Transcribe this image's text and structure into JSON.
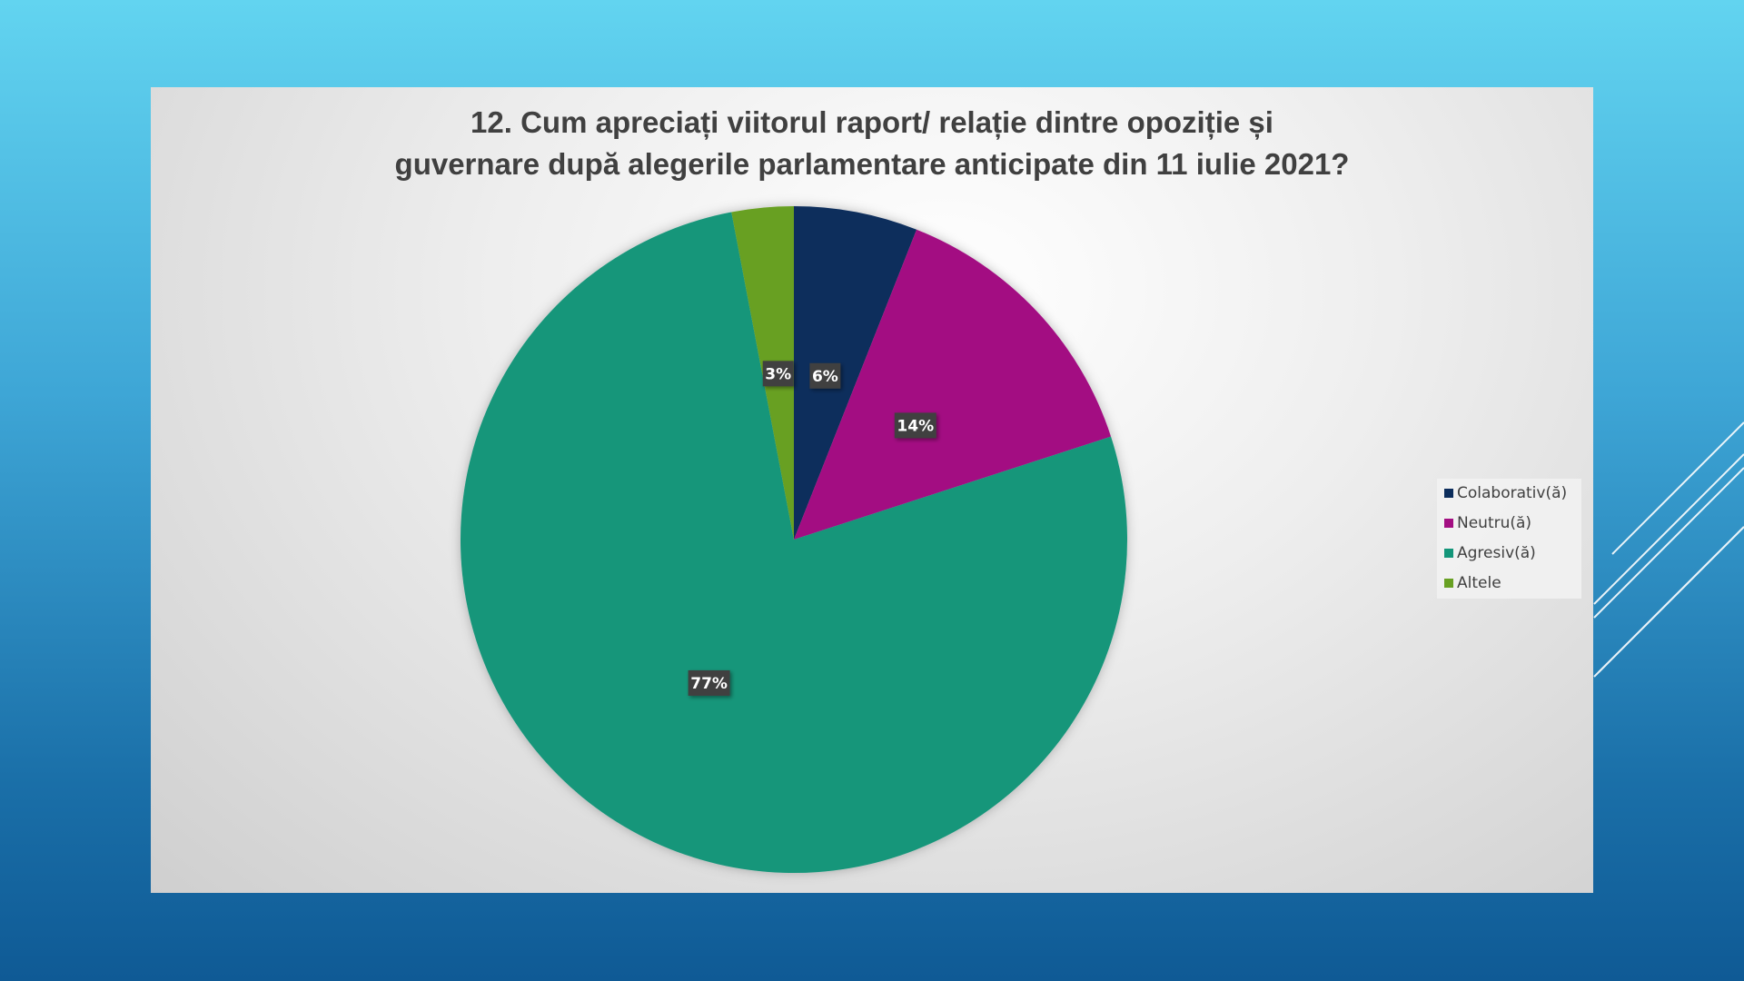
{
  "chart_data": {
    "type": "pie",
    "title": "12. Cum apreciați viitorul raport/ relație dintre opoziție și guvernare după alegerile parlamentare anticipate din 11 iulie 2021?",
    "categories": [
      "Colaborativ(ă)",
      "Neutru(ă)",
      "Agresiv(ă)",
      "Altele"
    ],
    "values": [
      6,
      14,
      77,
      3
    ],
    "value_labels": [
      "6%",
      "14%",
      "77%",
      "3%"
    ],
    "colors": [
      "#0c2d5c",
      "#a30f82",
      "#14967a",
      "#68a023"
    ],
    "legend": "right"
  }
}
